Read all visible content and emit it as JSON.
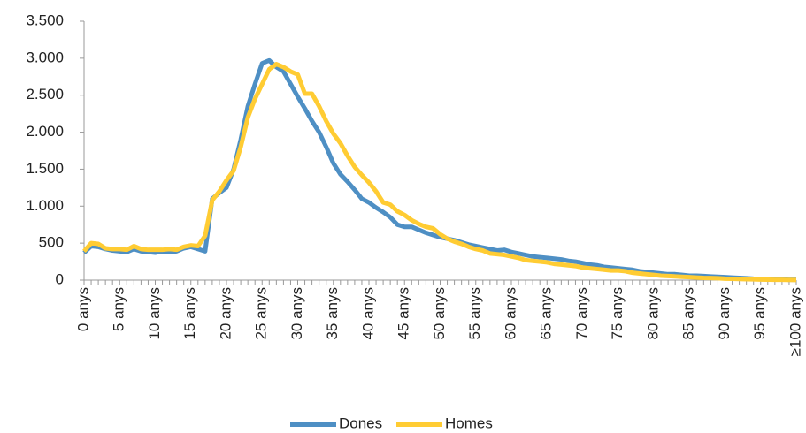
{
  "chart_data": {
    "type": "line",
    "categories": [
      "0 anys",
      null,
      null,
      null,
      null,
      "5 anys",
      null,
      null,
      null,
      null,
      "10 anys",
      null,
      null,
      null,
      null,
      "15 anys",
      null,
      null,
      null,
      null,
      "20 anys",
      null,
      null,
      null,
      null,
      "25 anys",
      null,
      null,
      null,
      null,
      "30 anys",
      null,
      null,
      null,
      null,
      "35 anys",
      null,
      null,
      null,
      null,
      "40 anys",
      null,
      null,
      null,
      null,
      "45 anys",
      null,
      null,
      null,
      null,
      "50 anys",
      null,
      null,
      null,
      null,
      "55 anys",
      null,
      null,
      null,
      null,
      "60 anys",
      null,
      null,
      null,
      null,
      "65 anys",
      null,
      null,
      null,
      null,
      "70 anys",
      null,
      null,
      null,
      null,
      "75 anys",
      null,
      null,
      null,
      null,
      "80 anys",
      null,
      null,
      null,
      null,
      "85 anys",
      null,
      null,
      null,
      null,
      "90 anys",
      null,
      null,
      null,
      null,
      "95 anys",
      null,
      null,
      null,
      null,
      "≥100 anys"
    ],
    "series": [
      {
        "name": "Dones",
        "color": "#4e8fc4",
        "values": [
          370,
          460,
          450,
          420,
          400,
          390,
          380,
          420,
          390,
          380,
          370,
          390,
          380,
          390,
          430,
          450,
          420,
          390,
          1100,
          1180,
          1250,
          1500,
          1900,
          2350,
          2650,
          2930,
          2970,
          2880,
          2820,
          2650,
          2480,
          2320,
          2150,
          2000,
          1800,
          1580,
          1430,
          1330,
          1220,
          1100,
          1050,
          980,
          920,
          850,
          750,
          720,
          720,
          680,
          640,
          610,
          580,
          560,
          540,
          510,
          480,
          460,
          440,
          420,
          400,
          410,
          380,
          360,
          340,
          320,
          310,
          300,
          290,
          280,
          260,
          250,
          230,
          210,
          200,
          180,
          170,
          160,
          150,
          140,
          120,
          110,
          100,
          90,
          80,
          80,
          70,
          60,
          60,
          55,
          50,
          45,
          40,
          35,
          30,
          25,
          20,
          18,
          15,
          10,
          8,
          5,
          5
        ]
      },
      {
        "name": "Homes",
        "color": "#ffcc33",
        "values": [
          390,
          500,
          490,
          430,
          420,
          420,
          410,
          460,
          420,
          410,
          410,
          410,
          420,
          410,
          450,
          470,
          460,
          600,
          1080,
          1200,
          1350,
          1480,
          1800,
          2200,
          2450,
          2650,
          2850,
          2920,
          2880,
          2820,
          2780,
          2520,
          2520,
          2350,
          2150,
          1980,
          1850,
          1680,
          1530,
          1420,
          1320,
          1200,
          1050,
          1020,
          930,
          880,
          810,
          760,
          720,
          700,
          620,
          560,
          520,
          490,
          450,
          420,
          400,
          360,
          350,
          340,
          320,
          300,
          270,
          260,
          250,
          240,
          220,
          210,
          200,
          190,
          170,
          160,
          150,
          140,
          130,
          130,
          120,
          100,
          90,
          80,
          70,
          60,
          55,
          50,
          45,
          40,
          35,
          30,
          28,
          25,
          20,
          18,
          15,
          12,
          10,
          8,
          6,
          5,
          4,
          3,
          2
        ]
      }
    ],
    "ylim": [
      0,
      3500
    ],
    "yticks": [
      0,
      500,
      {
        "value": 1000,
        "label": "1.000"
      },
      {
        "value": 1500,
        "label": "1.500"
      },
      {
        "value": 2000,
        "label": "2.000"
      },
      {
        "value": 2500,
        "label": "2.500"
      },
      {
        "value": 3000,
        "label": "3.000"
      },
      {
        "value": 3500,
        "label": "3.500"
      }
    ],
    "legend": "bottom"
  }
}
